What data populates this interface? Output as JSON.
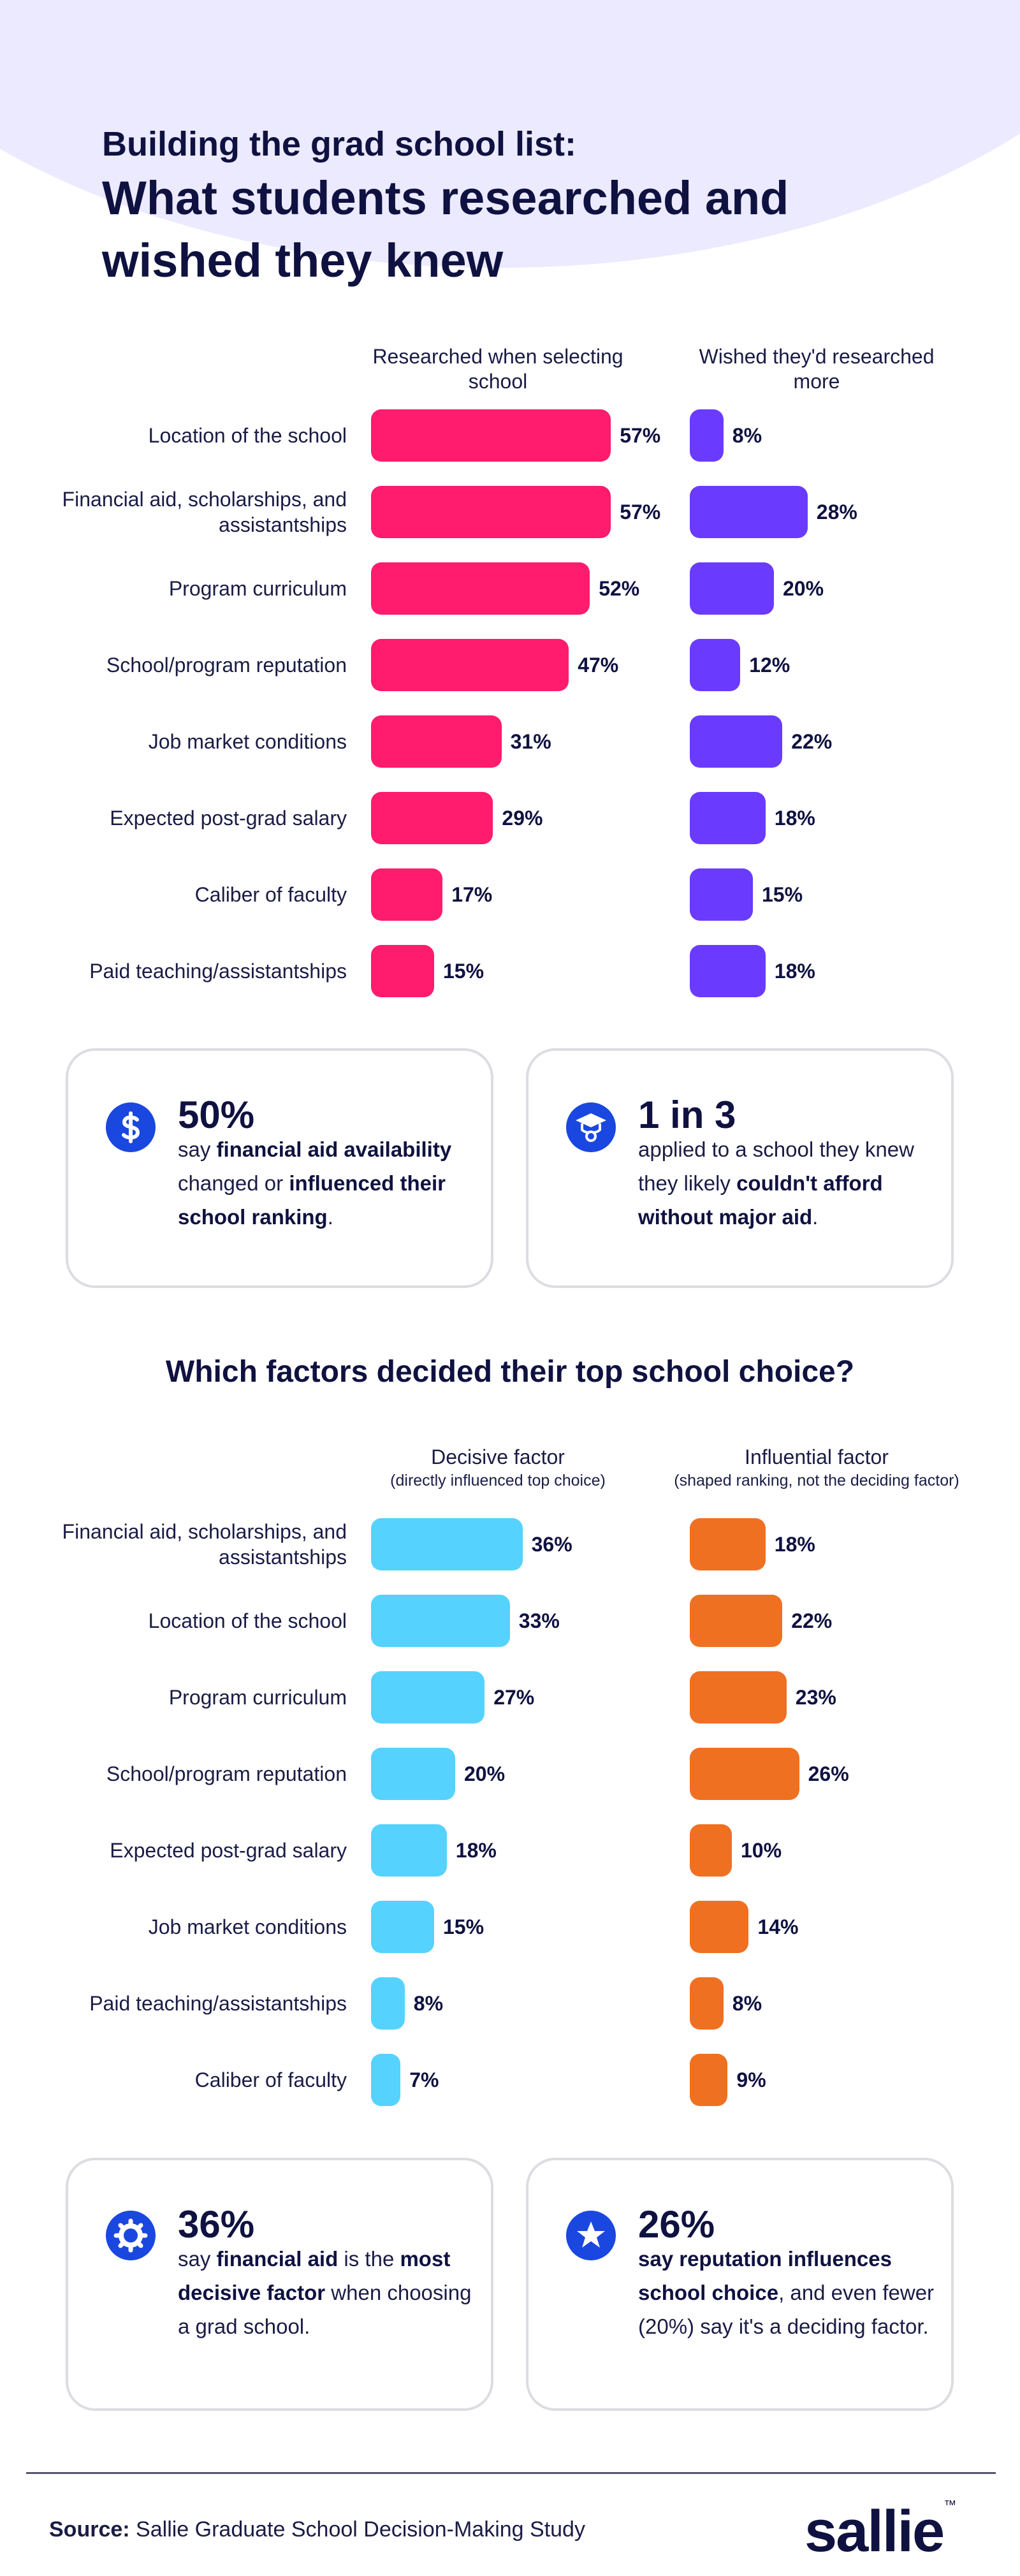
{
  "header": {
    "kicker": "Building the grad school list:",
    "title": "What students researched and wished they knew"
  },
  "chart_data": [
    {
      "type": "bar",
      "orientation": "horizontal",
      "categories": [
        "Location of the school",
        "Financial aid, scholarships, and assistantships",
        "Program curriculum",
        "School/program reputation",
        "Job market conditions",
        "Expected post-grad salary",
        "Caliber of faculty",
        "Paid teaching/assistantships"
      ],
      "series": [
        {
          "name": "Researched when selecting school",
          "color": "#ff1b6d",
          "values": [
            57,
            57,
            52,
            47,
            31,
            29,
            17,
            15
          ],
          "value_labels": [
            "57%",
            "57%",
            "52%",
            "47%",
            "31%",
            "29%",
            "17%",
            "15%"
          ]
        },
        {
          "name": "Wished they'd researched more",
          "color": "#6a3bff",
          "values": [
            8,
            28,
            20,
            12,
            22,
            18,
            15,
            18
          ],
          "value_labels": [
            "8%",
            "28%",
            "20%",
            "12%",
            "22%",
            "18%",
            "15%",
            "18%"
          ]
        }
      ]
    },
    {
      "type": "bar",
      "orientation": "horizontal",
      "title": "Which factors decided their top school choice?",
      "categories": [
        "Financial aid, scholarships, and assistantships",
        "Location of the school",
        "Program curriculum",
        "School/program reputation",
        "Expected post-grad salary",
        "Job market conditions",
        "Paid teaching/assistantships",
        "Caliber of faculty"
      ],
      "series": [
        {
          "name": "Decisive factor",
          "note": "(directly influenced top choice)",
          "color": "#56d2ff",
          "values": [
            36,
            33,
            27,
            20,
            18,
            15,
            8,
            7
          ],
          "value_labels": [
            "36%",
            "33%",
            "27%",
            "20%",
            "18%",
            "15%",
            "8%",
            "7%"
          ]
        },
        {
          "name": "Influential factor",
          "note": "(shaped ranking, not the deciding factor)",
          "color": "#f07022",
          "values": [
            18,
            22,
            23,
            26,
            10,
            14,
            8,
            9
          ],
          "value_labels": [
            "18%",
            "22%",
            "23%",
            "26%",
            "10%",
            "14%",
            "8%",
            "9%"
          ]
        }
      ]
    }
  ],
  "callouts": [
    {
      "stat": "50%",
      "segments": [
        {
          "text": "say ",
          "bold": false
        },
        {
          "text": "financial aid availability",
          "bold": true
        },
        {
          "text": " changed or ",
          "bold": false
        },
        {
          "text": "influenced their school ranking",
          "bold": true
        },
        {
          "text": ".",
          "bold": false
        }
      ]
    },
    {
      "stat": "1 in 3",
      "segments": [
        {
          "text": "applied to a school they knew they likely ",
          "bold": false
        },
        {
          "text": "couldn't afford without major aid",
          "bold": true
        },
        {
          "text": ".",
          "bold": false
        }
      ]
    },
    {
      "stat": "36%",
      "segments": [
        {
          "text": "say ",
          "bold": false
        },
        {
          "text": "financial aid",
          "bold": true
        },
        {
          "text": " is the ",
          "bold": false
        },
        {
          "text": "most decisive factor",
          "bold": true
        },
        {
          "text": " when choosing a grad school.",
          "bold": false
        }
      ]
    },
    {
      "stat": "26%",
      "segments": [
        {
          "text": "say reputation influences school choice",
          "bold": true
        },
        {
          "text": ", and even fewer (20%) say it's a deciding factor.",
          "bold": false
        }
      ]
    }
  ],
  "footer": {
    "source_label": "Source:",
    "source": "Sallie Graduate School Decision-Making Study",
    "brand": "sallie",
    "trademark": "™"
  }
}
